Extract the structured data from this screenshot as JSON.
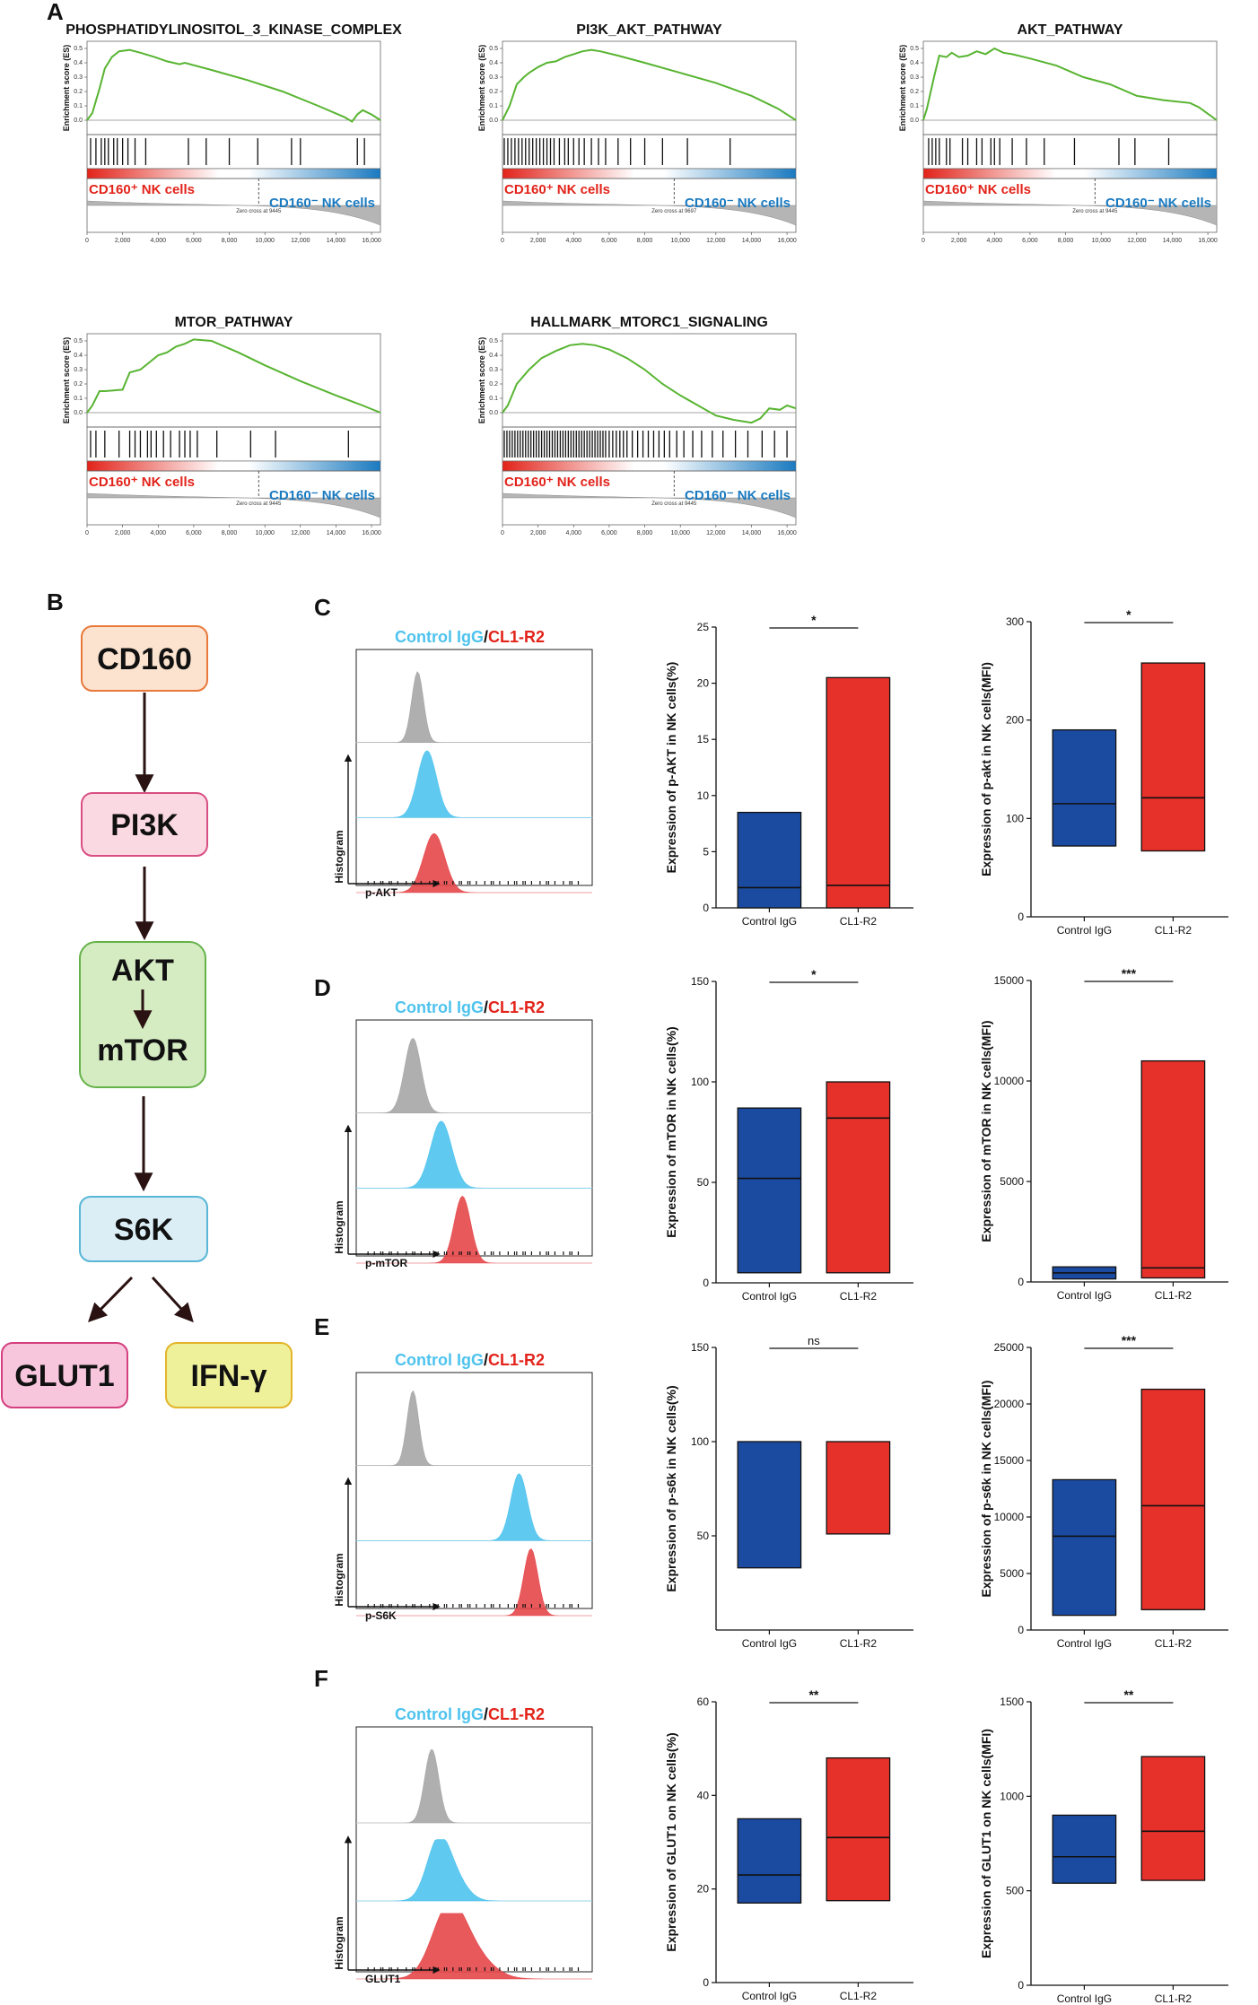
{
  "panel_a": {
    "letter": "A",
    "y_axis_label": "Enrichment score (ES)",
    "pos_label": "CD160⁺ NK cells",
    "neg_label": "CD160⁻ NK cells",
    "x_ticks": [
      "0",
      "2,000",
      "4,000",
      "6,000",
      "8,000",
      "10,000",
      "12,000",
      "14,000",
      "16,000"
    ],
    "plots": [
      {
        "title": "PHOSPHATIDYLINOSITOL_3_KINASE_COMPLEX",
        "y_ticks": [
          "0.5",
          "0.4",
          "0.3",
          "0.2",
          "0.1",
          "0.0"
        ],
        "zero_cross": "Zero cross at 9445",
        "curve": [
          [
            0,
            0
          ],
          [
            300,
            0.05
          ],
          [
            700,
            0.22
          ],
          [
            1000,
            0.36
          ],
          [
            1400,
            0.44
          ],
          [
            1800,
            0.48
          ],
          [
            2400,
            0.49
          ],
          [
            3000,
            0.47
          ],
          [
            3800,
            0.44
          ],
          [
            4500,
            0.41
          ],
          [
            5200,
            0.39
          ],
          [
            5500,
            0.4
          ],
          [
            7000,
            0.35
          ],
          [
            9000,
            0.28
          ],
          [
            11000,
            0.2
          ],
          [
            13000,
            0.1
          ],
          [
            14500,
            0.02
          ],
          [
            14900,
            -0.01
          ],
          [
            15200,
            0.04
          ],
          [
            15500,
            0.07
          ],
          [
            16000,
            0.04
          ],
          [
            16500,
            0.0
          ]
        ],
        "hits": [
          200,
          500,
          800,
          1000,
          1200,
          1500,
          1700,
          2000,
          2300,
          2700,
          3300,
          5700,
          6700,
          8000,
          9600,
          11500,
          12000,
          15200,
          15600
        ]
      },
      {
        "title": "PI3K_AKT_PATHWAY",
        "y_ticks": [
          "0.5",
          "0.4",
          "0.3",
          "0.2",
          "0.1",
          "0.0"
        ],
        "zero_cross": "Zero cross at 9697",
        "curve": [
          [
            0,
            0
          ],
          [
            400,
            0.1
          ],
          [
            800,
            0.25
          ],
          [
            1200,
            0.3
          ],
          [
            1500,
            0.33
          ],
          [
            2000,
            0.37
          ],
          [
            2500,
            0.4
          ],
          [
            3000,
            0.41
          ],
          [
            3500,
            0.44
          ],
          [
            4000,
            0.46
          ],
          [
            4500,
            0.48
          ],
          [
            5000,
            0.49
          ],
          [
            5500,
            0.48
          ],
          [
            6500,
            0.45
          ],
          [
            8000,
            0.4
          ],
          [
            10000,
            0.33
          ],
          [
            12000,
            0.26
          ],
          [
            14000,
            0.17
          ],
          [
            15500,
            0.08
          ],
          [
            16500,
            0.0
          ]
        ],
        "hits": [
          100,
          300,
          500,
          700,
          900,
          1100,
          1300,
          1500,
          1700,
          1900,
          2100,
          2300,
          2500,
          2700,
          2900,
          3200,
          3500,
          3700,
          4000,
          4300,
          4600,
          5000,
          5400,
          5800,
          6500,
          7200,
          8000,
          9000,
          10400,
          12800
        ]
      },
      {
        "title": "AKT_PATHWAY",
        "y_ticks": [
          "0.5",
          "0.4",
          "0.3",
          "0.2",
          "0.1",
          "0.0"
        ],
        "zero_cross": "Zero cross at 9445",
        "curve": [
          [
            0,
            0
          ],
          [
            200,
            0.08
          ],
          [
            600,
            0.3
          ],
          [
            900,
            0.45
          ],
          [
            1300,
            0.44
          ],
          [
            1600,
            0.47
          ],
          [
            2000,
            0.44
          ],
          [
            2500,
            0.45
          ],
          [
            3000,
            0.48
          ],
          [
            3500,
            0.46
          ],
          [
            4000,
            0.5
          ],
          [
            4500,
            0.47
          ],
          [
            5000,
            0.46
          ],
          [
            6000,
            0.43
          ],
          [
            7500,
            0.38
          ],
          [
            9000,
            0.3
          ],
          [
            10500,
            0.25
          ],
          [
            12000,
            0.17
          ],
          [
            13500,
            0.14
          ],
          [
            15000,
            0.12
          ],
          [
            15500,
            0.09
          ],
          [
            16500,
            0.0
          ]
        ],
        "hits": [
          300,
          500,
          700,
          900,
          1300,
          1500,
          2200,
          2500,
          3000,
          3300,
          3800,
          4000,
          4300,
          5000,
          5800,
          6800,
          8500,
          11000,
          11900,
          13800
        ]
      },
      {
        "title": "MTOR_PATHWAY",
        "y_ticks": [
          "0.5",
          "0.4",
          "0.3",
          "0.2",
          "0.1",
          "0.0"
        ],
        "zero_cross": "Zero cross at 9445",
        "curve": [
          [
            0,
            0
          ],
          [
            300,
            0.05
          ],
          [
            700,
            0.15
          ],
          [
            1000,
            0.15
          ],
          [
            2000,
            0.16
          ],
          [
            2400,
            0.28
          ],
          [
            3000,
            0.3
          ],
          [
            3400,
            0.34
          ],
          [
            4000,
            0.4
          ],
          [
            4500,
            0.42
          ],
          [
            5000,
            0.46
          ],
          [
            5500,
            0.48
          ],
          [
            6000,
            0.51
          ],
          [
            7000,
            0.5
          ],
          [
            8500,
            0.42
          ],
          [
            10000,
            0.33
          ],
          [
            12000,
            0.22
          ],
          [
            14000,
            0.12
          ],
          [
            15500,
            0.05
          ],
          [
            16500,
            0.0
          ]
        ],
        "hits": [
          200,
          500,
          1000,
          1800,
          2400,
          2700,
          3000,
          3400,
          3600,
          3900,
          4300,
          4700,
          5200,
          5500,
          5800,
          6200,
          7300,
          9200,
          10600,
          14700
        ]
      },
      {
        "title": "HALLMARK_MTORC1_SIGNALING",
        "y_ticks": [
          "0.5",
          "0.4",
          "0.3",
          "0.2",
          "0.1",
          "0.0"
        ],
        "zero_cross": "Zero cross at 9445",
        "curve": [
          [
            0,
            0
          ],
          [
            300,
            0.05
          ],
          [
            800,
            0.2
          ],
          [
            1500,
            0.3
          ],
          [
            2200,
            0.38
          ],
          [
            3000,
            0.43
          ],
          [
            3800,
            0.47
          ],
          [
            4500,
            0.48
          ],
          [
            5200,
            0.47
          ],
          [
            6000,
            0.44
          ],
          [
            7000,
            0.38
          ],
          [
            8000,
            0.3
          ],
          [
            9000,
            0.2
          ],
          [
            10000,
            0.12
          ],
          [
            11000,
            0.05
          ],
          [
            12000,
            -0.02
          ],
          [
            13000,
            -0.05
          ],
          [
            14000,
            -0.07
          ],
          [
            14500,
            -0.04
          ],
          [
            15000,
            0.03
          ],
          [
            15600,
            0.02
          ],
          [
            16000,
            0.05
          ],
          [
            16500,
            0.03
          ]
        ],
        "hits": [
          100,
          250,
          400,
          550,
          700,
          850,
          1000,
          1150,
          1300,
          1450,
          1600,
          1750,
          1900,
          2050,
          2200,
          2350,
          2500,
          2650,
          2800,
          2950,
          3100,
          3250,
          3400,
          3550,
          3700,
          3850,
          4000,
          4150,
          4300,
          4450,
          4600,
          4750,
          4900,
          5050,
          5200,
          5350,
          5500,
          5650,
          5800,
          6000,
          6200,
          6400,
          6600,
          6800,
          7000,
          7300,
          7600,
          7900,
          8200,
          8500,
          8800,
          9100,
          9400,
          9800,
          10200,
          10700,
          11200,
          11800,
          12400,
          13100,
          13800,
          14600,
          15300,
          16000
        ]
      }
    ]
  },
  "panel_b": {
    "letter": "B",
    "nodes": {
      "cd160": "CD160",
      "pi3k": "PI3K",
      "akt": "AKT",
      "mtor": "mTOR",
      "s6k": "S6K",
      "glut1": "GLUT1",
      "ifng": "IFN-γ"
    },
    "colors": {
      "cd160_fill": "#fbe3cf",
      "cd160_stroke": "#e8793a",
      "pi3k_fill": "#fbd9e3",
      "pi3k_stroke": "#d94f83",
      "akt_fill": "#d5ecc3",
      "akt_stroke": "#66b24a",
      "s6k_fill": "#dbeef5",
      "s6k_stroke": "#58b6d6",
      "glut1_fill": "#f7c6dc",
      "glut1_stroke": "#d43f7f",
      "ifng_fill": "#eef09a",
      "ifng_stroke": "#e3b52a"
    }
  },
  "rows": [
    {
      "letter": "C",
      "control_label": "Control IgG",
      "sep": "/",
      "treat_label": "CL1-R2",
      "hist_ylabel": "Histogram",
      "hist_xlabel": "p-AKT",
      "hist": {
        "gray": {
          "m": 0.26,
          "s": 0.025,
          "h": 0.9
        },
        "blue": {
          "m": 0.3,
          "s": 0.04,
          "h": 0.85
        },
        "red": {
          "m": 0.33,
          "s": 0.045,
          "h": 0.75
        }
      },
      "sig1": "*",
      "sig2": "*"
    },
    {
      "letter": "D",
      "control_label": "Control IgG",
      "sep": "/",
      "treat_label": "CL1-R2",
      "hist_ylabel": "Histogram",
      "hist_xlabel": "p-mTOR",
      "hist": {
        "gray": {
          "m": 0.24,
          "s": 0.035,
          "h": 0.95
        },
        "blue": {
          "m": 0.36,
          "s": 0.045,
          "h": 0.85
        },
        "red": {
          "m": 0.45,
          "s": 0.035,
          "h": 0.85
        }
      },
      "sig1": "*",
      "sig2": "***"
    },
    {
      "letter": "E",
      "control_label": "Control IgG",
      "sep": "/",
      "treat_label": "CL1-R2",
      "hist_ylabel": "Histogram",
      "hist_xlabel": "p-S6K",
      "hist": {
        "gray": {
          "m": 0.24,
          "s": 0.025,
          "h": 0.95
        },
        "blue": {
          "m": 0.69,
          "s": 0.035,
          "h": 0.85
        },
        "red": {
          "m": 0.74,
          "s": 0.03,
          "h": 0.85
        }
      },
      "sig1": "ns",
      "sig2": "***"
    },
    {
      "letter": "F",
      "control_label": "Control IgG",
      "sep": "/",
      "treat_label": "CL1-R2",
      "hist_ylabel": "Histogram",
      "hist_xlabel": "GLUT1",
      "hist": {
        "gray": {
          "m": 0.32,
          "s": 0.03,
          "h": 0.9
        },
        "blue": {
          "m": 0.35,
          "s": 0.05,
          "h": 0.75
        },
        "red": {
          "m": 0.39,
          "s": 0.07,
          "h": 0.8
        }
      },
      "sig1": "**",
      "sig2": "**"
    }
  ],
  "chart_data": [
    {
      "type": "bar",
      "panel": "C",
      "title": "",
      "xlabel": "",
      "ylabel": "Expression of p-AKT in NK cells(%)",
      "categories": [
        "Control IgG",
        "CL1-R2"
      ],
      "ylim": [
        0,
        25
      ],
      "yticks": [
        0,
        5,
        10,
        15,
        20,
        25
      ],
      "series": [
        {
          "name": "range",
          "values": [
            {
              "min": 0,
              "max": 8.5,
              "median": 1.8
            },
            {
              "min": 0,
              "max": 20.5,
              "median": 2.0
            }
          ]
        }
      ],
      "significance": "*"
    },
    {
      "type": "bar",
      "panel": "C",
      "title": "",
      "xlabel": "",
      "ylabel": "Expression of p-akt in NK cells(MFI)",
      "categories": [
        "Control IgG",
        "CL1-R2"
      ],
      "ylim": [
        0,
        300
      ],
      "yticks": [
        0,
        100,
        200,
        300
      ],
      "series": [
        {
          "name": "range",
          "values": [
            {
              "min": 72,
              "max": 190,
              "median": 115
            },
            {
              "min": 67,
              "max": 258,
              "median": 121
            }
          ]
        }
      ],
      "significance": "*"
    },
    {
      "type": "bar",
      "panel": "D",
      "title": "",
      "xlabel": "",
      "ylabel": "Expression of mTOR in NK cells(%)",
      "categories": [
        "Control IgG",
        "CL1-R2"
      ],
      "ylim": [
        0,
        150
      ],
      "yticks": [
        0,
        50,
        100,
        150
      ],
      "series": [
        {
          "name": "range",
          "values": [
            {
              "min": 5,
              "max": 87,
              "median": 52
            },
            {
              "min": 5,
              "max": 100,
              "median": 82
            }
          ]
        }
      ],
      "significance": "*"
    },
    {
      "type": "bar",
      "panel": "D",
      "title": "",
      "xlabel": "",
      "ylabel": "Expression of mTOR in NK cells(MFI)",
      "categories": [
        "Control IgG",
        "CL1-R2"
      ],
      "ylim": [
        0,
        15000
      ],
      "yticks": [
        0,
        5000,
        10000,
        15000
      ],
      "series": [
        {
          "name": "range",
          "values": [
            {
              "min": 150,
              "max": 750,
              "median": 450
            },
            {
              "min": 200,
              "max": 11000,
              "median": 700
            }
          ]
        }
      ],
      "significance": "***"
    },
    {
      "type": "bar",
      "panel": "E",
      "title": "",
      "xlabel": "",
      "ylabel": "Expression of p-s6k in NK cells(%)",
      "categories": [
        "Control IgG",
        "CL1-R2"
      ],
      "ylim": [
        0,
        150
      ],
      "yticks": [
        50,
        100,
        150
      ],
      "series": [
        {
          "name": "range",
          "values": [
            {
              "min": 33,
              "max": 100,
              "median": null
            },
            {
              "min": 51,
              "max": 100,
              "median": null
            }
          ]
        }
      ],
      "significance": "ns"
    },
    {
      "type": "bar",
      "panel": "E",
      "title": "",
      "xlabel": "",
      "ylabel": "Expression of p-s6k in NK cells(MFI)",
      "categories": [
        "Control IgG",
        "CL1-R2"
      ],
      "ylim": [
        0,
        25000
      ],
      "yticks": [
        0,
        5000,
        10000,
        15000,
        20000,
        25000
      ],
      "series": [
        {
          "name": "range",
          "values": [
            {
              "min": 1300,
              "max": 13300,
              "median": 8300
            },
            {
              "min": 1800,
              "max": 21300,
              "median": 11000
            }
          ]
        }
      ],
      "significance": "***"
    },
    {
      "type": "bar",
      "panel": "F",
      "title": "",
      "xlabel": "",
      "ylabel": "Expression of GLUT1 on NK cells(%)",
      "categories": [
        "Control IgG",
        "CL1-R2"
      ],
      "ylim": [
        0,
        60
      ],
      "yticks": [
        0,
        20,
        40,
        60
      ],
      "series": [
        {
          "name": "range",
          "values": [
            {
              "min": 17,
              "max": 35,
              "median": 23
            },
            {
              "min": 17.5,
              "max": 48,
              "median": 31
            }
          ]
        }
      ],
      "significance": "**"
    },
    {
      "type": "bar",
      "panel": "F",
      "title": "",
      "xlabel": "",
      "ylabel": "Expression of GLUT1 on NK cells(MFI)",
      "categories": [
        "Control IgG",
        "CL1-R2"
      ],
      "ylim": [
        0,
        1500
      ],
      "yticks": [
        0,
        500,
        1000,
        1500
      ],
      "series": [
        {
          "name": "range",
          "values": [
            {
              "min": 540,
              "max": 900,
              "median": 680
            },
            {
              "min": 555,
              "max": 1210,
              "median": 815
            }
          ]
        }
      ],
      "significance": "**"
    }
  ],
  "colors": {
    "control": "#1b4aa1",
    "treat": "#e5312a",
    "curve": "#58b431",
    "gray_hist": "#a6a6a6",
    "blue_hist": "#4ec3ee",
    "red_hist": "#e5474a",
    "grad_red": "#e2231a",
    "grad_blue": "#1a7ac0"
  }
}
